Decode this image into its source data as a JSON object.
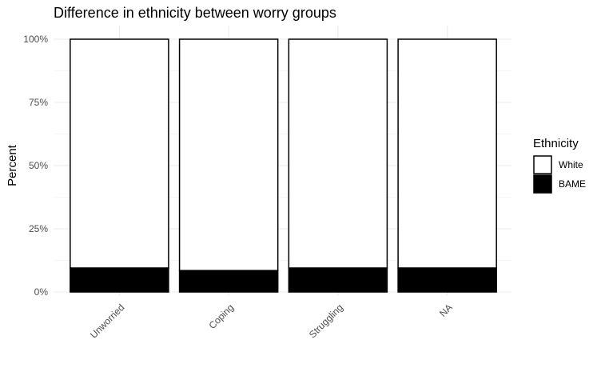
{
  "chart_data": {
    "type": "bar",
    "stacked": true,
    "percent": true,
    "title": "Difference in ethnicity between worry groups",
    "ylabel": "Percent",
    "xlabel": "",
    "categories": [
      "Unworried",
      "Coping",
      "Struggling",
      "NA"
    ],
    "y_ticks": [
      "0%",
      "25%",
      "50%",
      "75%",
      "100%"
    ],
    "ylim": [
      0,
      100
    ],
    "series": [
      {
        "name": "BAME",
        "values": [
          9.5,
          8.5,
          9.5,
          9.5
        ],
        "color": "#000000"
      },
      {
        "name": "White",
        "values": [
          90.5,
          91.5,
          90.5,
          90.5
        ],
        "color": "#ffffff"
      }
    ],
    "legend": {
      "title": "Ethnicity",
      "position": "right",
      "entries": [
        {
          "label": "White",
          "color": "#ffffff"
        },
        {
          "label": "BAME",
          "color": "#000000"
        }
      ]
    },
    "grid": true,
    "bar_outline_color": "#000000",
    "gridline_color": "#ebebeb"
  }
}
